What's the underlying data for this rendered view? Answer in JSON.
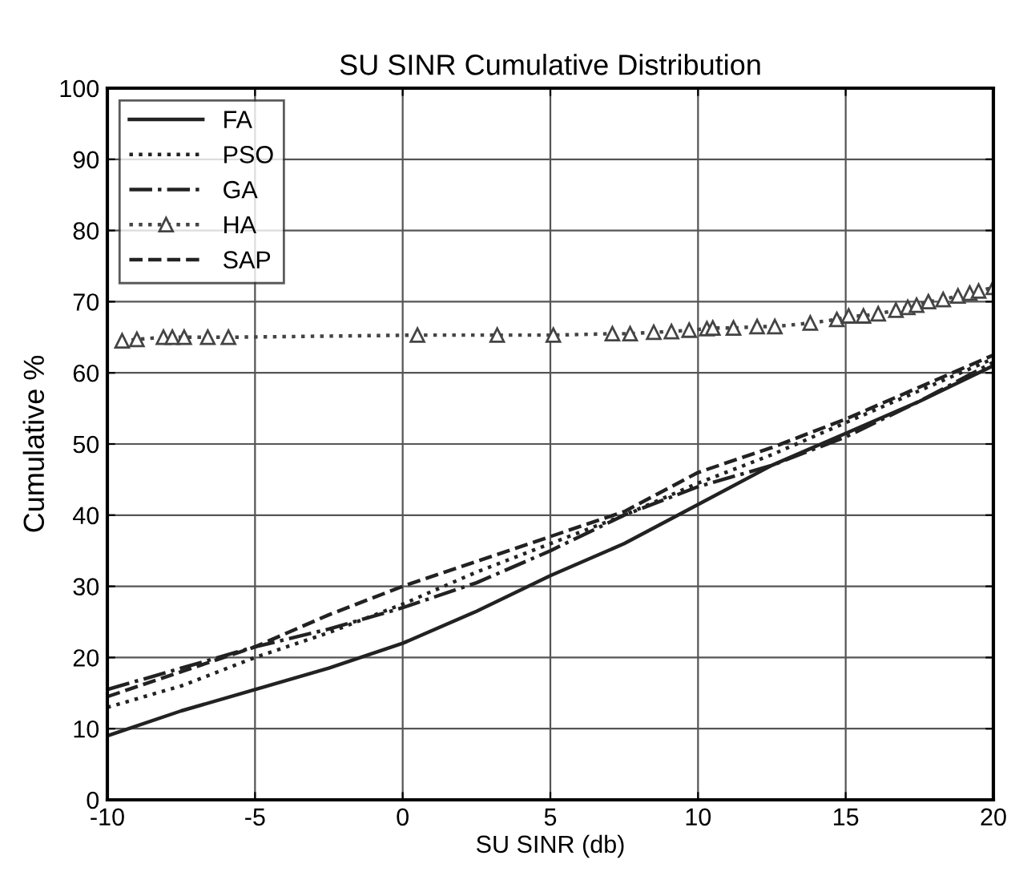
{
  "chart_data": {
    "type": "line",
    "title": "SU SINR Cumulative Distribution",
    "xlabel": "SU SINR (db)",
    "ylabel": "Cumulative %",
    "xlim": [
      -10,
      20
    ],
    "ylim": [
      0,
      100
    ],
    "xticks": [
      -10,
      -5,
      0,
      5,
      10,
      15,
      {
        "value": 20,
        "label": "20"
      }
    ],
    "yticks": [
      0,
      10,
      20,
      30,
      40,
      50,
      60,
      70,
      80,
      90,
      100
    ],
    "grid": true,
    "legend": "top left",
    "series": [
      {
        "name": "FA",
        "color": "#222222",
        "line_style": "solid",
        "marker": "none",
        "x": [
          -10,
          -7.5,
          -5,
          -2.5,
          0,
          2.5,
          5,
          7.5,
          10,
          12.5,
          15,
          17.5,
          20
        ],
        "values": [
          9,
          12.5,
          15.5,
          18.5,
          22,
          26.5,
          31.5,
          36,
          41.5,
          47,
          51.5,
          56,
          61
        ]
      },
      {
        "name": "PSO",
        "color": "#222222",
        "line_style": "dotted",
        "marker": "none",
        "x": [
          -10,
          -7.5,
          -5,
          -2.5,
          0,
          2.5,
          5,
          7.5,
          10,
          12.5,
          15,
          17.5,
          20
        ],
        "values": [
          13,
          16,
          20,
          23.5,
          27.5,
          32,
          36,
          40,
          44.5,
          48.5,
          53,
          57.5,
          62
        ]
      },
      {
        "name": "GA",
        "color": "#222222",
        "line_style": "dashdot",
        "marker": "none",
        "x": [
          -10,
          -7.5,
          -5,
          -2.5,
          0,
          2.5,
          5,
          7.5,
          10,
          12.5,
          15,
          17.5,
          20
        ],
        "values": [
          15.5,
          18.5,
          21.5,
          24,
          27,
          30.5,
          35,
          40,
          44,
          47,
          51,
          56,
          61.5
        ]
      },
      {
        "name": "HA",
        "color": "#444444",
        "line_style": "dotted",
        "marker": "triangle",
        "x": [
          -9.5,
          -9,
          -8.1,
          -7.8,
          -7.4,
          -6.6,
          -5.9,
          0.5,
          3.2,
          5.1,
          7.1,
          7.7,
          8.5,
          9.1,
          9.7,
          10.3,
          10.5,
          11.2,
          12,
          12.6,
          13.8,
          14.7,
          15.1,
          15.6,
          16.1,
          16.7,
          17.1,
          17.4,
          17.8,
          18.3,
          18.8,
          19.2,
          19.5,
          20
        ],
        "values": [
          64.5,
          64.7,
          65,
          65,
          65,
          65,
          65,
          65.3,
          65.3,
          65.3,
          65.5,
          65.5,
          65.7,
          65.8,
          66,
          66.2,
          66.3,
          66.3,
          66.5,
          66.5,
          67,
          67.5,
          68,
          68,
          68.3,
          68.8,
          69.2,
          69.5,
          70,
          70.3,
          70.8,
          71.2,
          71.5,
          72
        ]
      },
      {
        "name": "SAP",
        "color": "#222222",
        "line_style": "dashed",
        "marker": "none",
        "x": [
          -10,
          -7.5,
          -5,
          -2.5,
          0,
          2.5,
          5,
          7.5,
          10,
          12.5,
          15,
          17.5,
          20
        ],
        "values": [
          14.5,
          18,
          21.5,
          26,
          30,
          33.5,
          37,
          40.5,
          46,
          49.5,
          53.5,
          58,
          62.5
        ]
      }
    ]
  }
}
